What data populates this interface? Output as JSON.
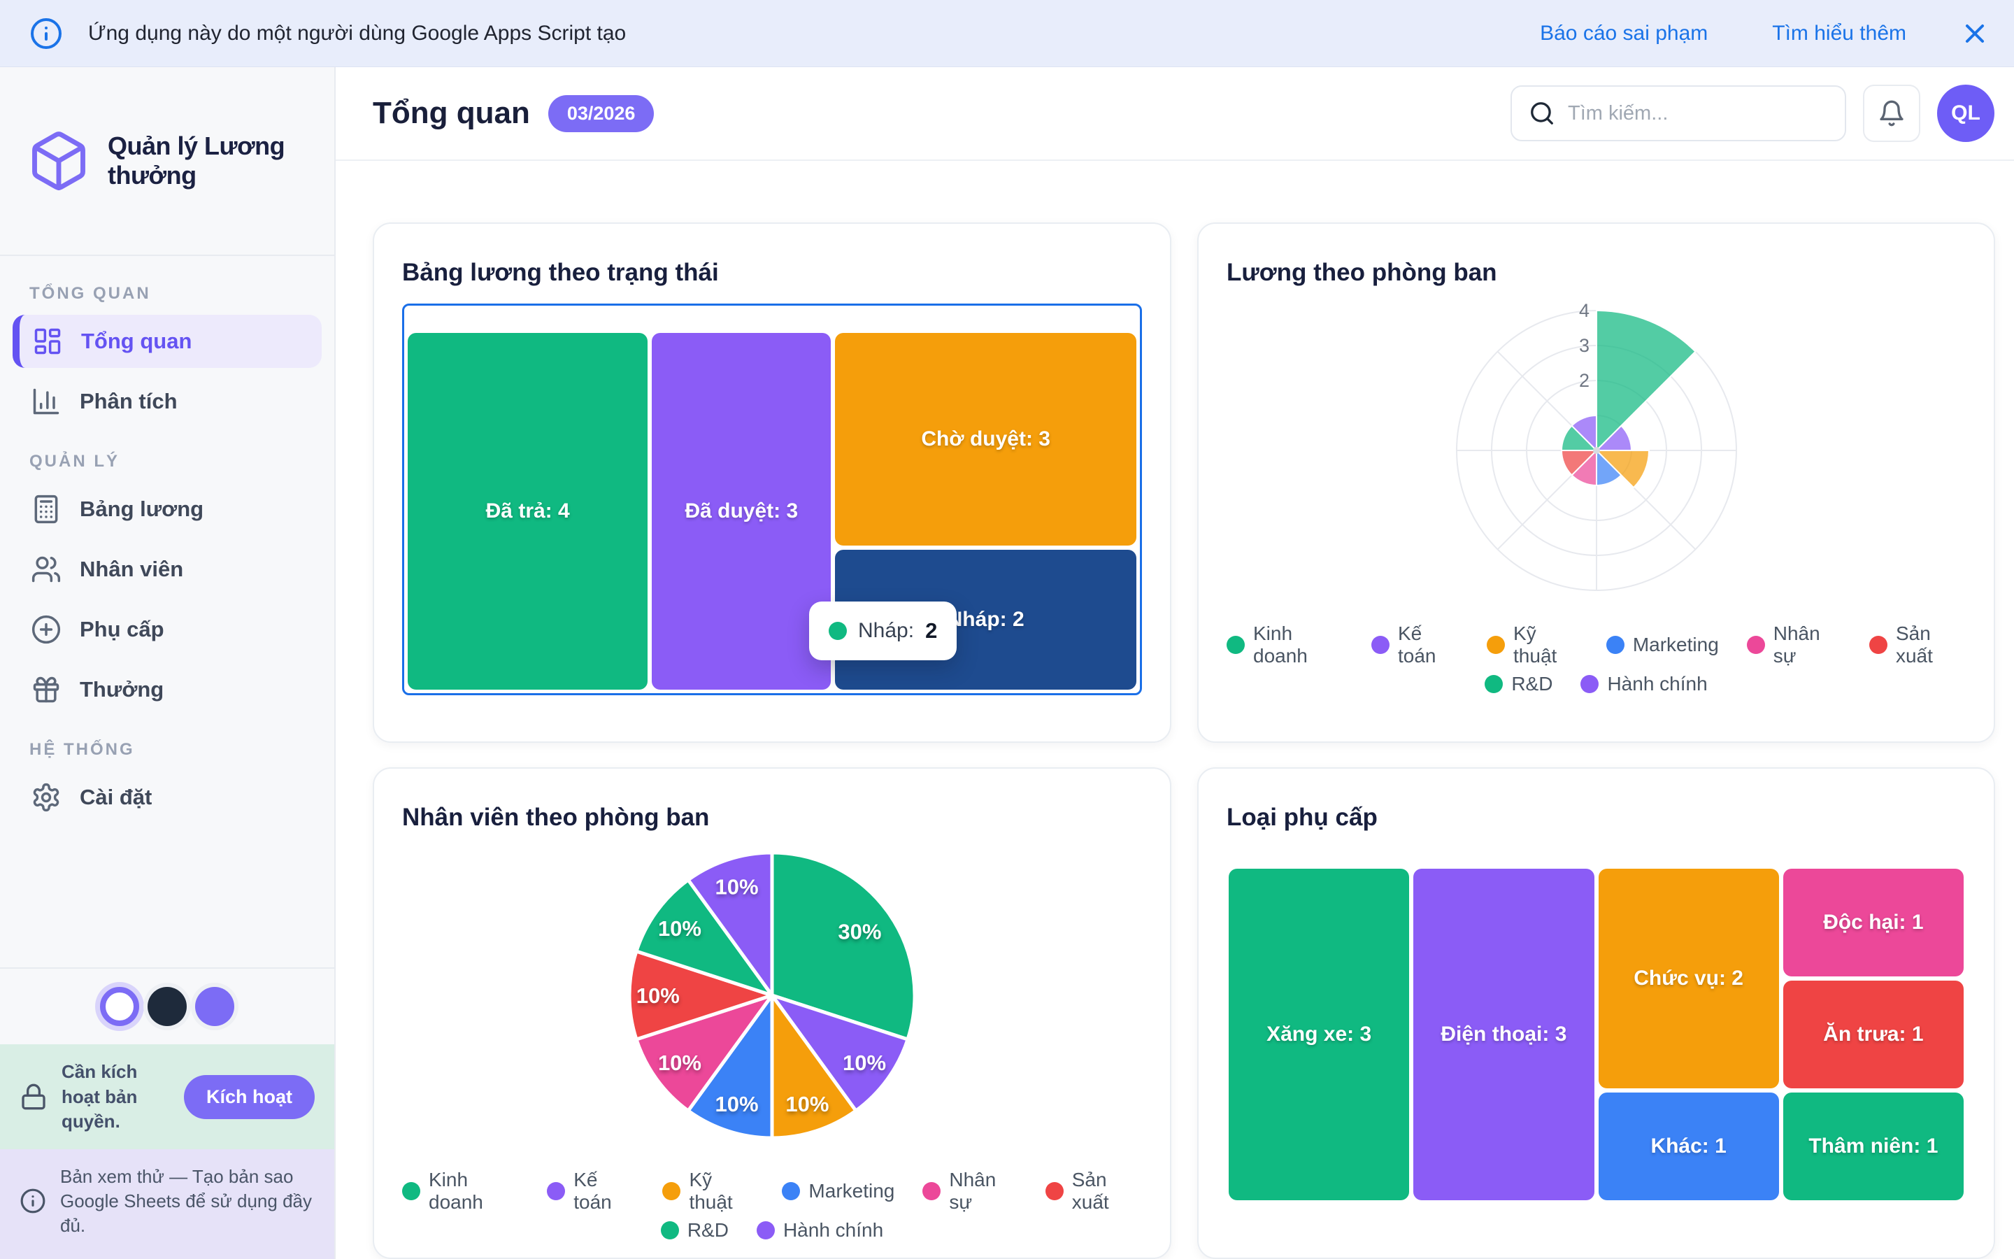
{
  "banner": {
    "text": "Ứng dụng này do một người dùng Google Apps Script tạo",
    "report_link": "Báo cáo sai phạm",
    "learn_link": "Tìm hiểu thêm"
  },
  "sidebar": {
    "app_title": "Quản lý Lương thưởng",
    "sections": [
      {
        "label": "TỔNG QUAN",
        "items": [
          {
            "label": "Tổng quan",
            "icon": "dashboard",
            "active": true
          },
          {
            "label": "Phân tích",
            "icon": "bar-chart",
            "active": false
          }
        ]
      },
      {
        "label": "QUẢN LÝ",
        "items": [
          {
            "label": "Bảng lương",
            "icon": "calculator",
            "active": false
          },
          {
            "label": "Nhân viên",
            "icon": "users",
            "active": false
          },
          {
            "label": "Phụ cấp",
            "icon": "plus-circle",
            "active": false
          },
          {
            "label": "Thưởng",
            "icon": "gift",
            "active": false
          }
        ]
      },
      {
        "label": "HỆ THỐNG",
        "items": [
          {
            "label": "Cài đặt",
            "icon": "gear",
            "active": false
          }
        ]
      }
    ],
    "theme_swatches": [
      "light",
      "dark",
      "purple"
    ],
    "license": {
      "text": "Cần kích hoạt bản quyền.",
      "button": "Kích hoạt"
    },
    "preview_note": "Bản xem thử — Tạo bản sao Google Sheets để sử dụng đầy đủ."
  },
  "header": {
    "title": "Tổng quan",
    "period_badge": "03/2026",
    "search_placeholder": "Tìm kiếm...",
    "avatar_initials": "QL"
  },
  "colors": {
    "accent_purple": "#7c6cf5",
    "banner_link_blue": "#1a73e8",
    "treemap_focus_border": "#1a6fe8",
    "draft_navy": "#1e4b8f"
  },
  "chart_data": [
    {
      "type": "treemap",
      "title": "Bảng lương theo trạng thái",
      "items": [
        {
          "label": "Đã trả",
          "value": 4,
          "color": "#10b981"
        },
        {
          "label": "Đã duyệt",
          "value": 3,
          "color": "#8b5cf6"
        },
        {
          "label": "Chờ duyệt",
          "value": 3,
          "color": "#f59e0b"
        },
        {
          "label": "Nháp",
          "value": 2,
          "color": "#1e4b8f"
        }
      ],
      "columns": [
        [
          0
        ],
        [
          1
        ],
        [
          2,
          3
        ]
      ],
      "tooltip": {
        "label": "Nháp:",
        "value": "2"
      }
    },
    {
      "type": "polar",
      "title": "Lương theo phòng ban",
      "categories": [
        "Kinh doanh",
        "Kế toán",
        "Kỹ thuật",
        "Marketing",
        "Nhân sự",
        "Sản xuất",
        "R&D",
        "Hành chính"
      ],
      "values": [
        4,
        1,
        1.5,
        1,
        1,
        1,
        1,
        1
      ],
      "colors": [
        "#10b981",
        "#8b5cf6",
        "#f59e0b",
        "#3b82f6",
        "#ec4899",
        "#ef4444",
        "#10b981",
        "#8b5cf6"
      ],
      "rmax": 4,
      "r_ticks": [
        2,
        3,
        4
      ],
      "legend_rows": [
        6,
        2
      ],
      "legend_position": "bottom"
    },
    {
      "type": "pie",
      "title": "Nhân viên theo phòng ban",
      "categories": [
        "Kinh doanh",
        "Kế toán",
        "Kỹ thuật",
        "Marketing",
        "Nhân sự",
        "Sản xuất",
        "R&D",
        "Hành chính"
      ],
      "values": [
        30,
        10,
        10,
        10,
        10,
        10,
        10,
        10
      ],
      "labels": [
        "30%",
        "10%",
        "10%",
        "10%",
        "10%",
        "10%",
        "10%",
        "10%"
      ],
      "colors": [
        "#10b981",
        "#8b5cf6",
        "#f59e0b",
        "#3b82f6",
        "#ec4899",
        "#ef4444",
        "#10b981",
        "#8b5cf6"
      ],
      "legend_rows": [
        6,
        2
      ],
      "legend_position": "bottom"
    },
    {
      "type": "treemap",
      "title": "Loại phụ cấp",
      "items": [
        {
          "label": "Xăng xe",
          "value": 3,
          "color": "#10b981"
        },
        {
          "label": "Điện thoại",
          "value": 3,
          "color": "#8b5cf6"
        },
        {
          "label": "Chức vụ",
          "value": 2,
          "color": "#f59e0b"
        },
        {
          "label": "Khác",
          "value": 1,
          "color": "#3b82f6"
        },
        {
          "label": "Độc hại",
          "value": 1,
          "color": "#ec4899"
        },
        {
          "label": "Ăn trưa",
          "value": 1,
          "color": "#ef4444"
        },
        {
          "label": "Thâm niên",
          "value": 1,
          "color": "#10b981"
        }
      ],
      "columns": [
        [
          0
        ],
        [
          1
        ],
        [
          2,
          3
        ],
        [
          4,
          5,
          6
        ]
      ]
    }
  ]
}
